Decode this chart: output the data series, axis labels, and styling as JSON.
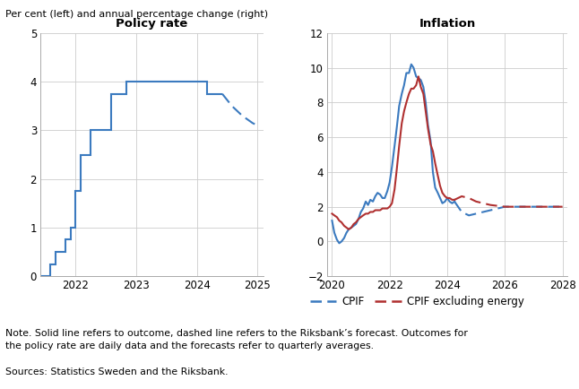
{
  "title_left": "Policy rate",
  "title_right": "Inflation",
  "suptitle": "Per cent (left) and annual percentage change (right)",
  "note": "Note. Solid line refers to outcome, dashed line refers to the Riksbank’s forecast. Outcomes for\nthe policy rate are daily data and the forecasts refer to quarterly averages.",
  "sources": "Sources: Statistics Sweden and the Riksbank.",
  "policy_solid_x": [
    2021.42,
    2021.42,
    2021.58,
    2021.58,
    2021.67,
    2021.67,
    2021.83,
    2021.83,
    2021.92,
    2021.92,
    2022.0,
    2022.0,
    2022.08,
    2022.08,
    2022.17,
    2022.17,
    2022.25,
    2022.25,
    2022.42,
    2022.42,
    2022.58,
    2022.58,
    2022.67,
    2022.67,
    2022.75,
    2022.75,
    2022.83,
    2022.83,
    2022.92,
    2022.92,
    2023.0,
    2023.0,
    2023.08,
    2023.08,
    2023.17,
    2023.17,
    2023.5,
    2023.5,
    2023.83,
    2023.83,
    2024.0,
    2024.0,
    2024.17,
    2024.17,
    2024.33,
    2024.33,
    2024.42
  ],
  "policy_solid_y": [
    0.0,
    0.0,
    0.0,
    0.25,
    0.25,
    0.5,
    0.5,
    0.75,
    0.75,
    1.0,
    1.0,
    1.75,
    1.75,
    2.5,
    2.5,
    2.5,
    2.5,
    3.0,
    3.0,
    3.0,
    3.0,
    3.75,
    3.75,
    3.75,
    3.75,
    3.75,
    3.75,
    4.0,
    4.0,
    4.0,
    4.0,
    4.0,
    4.0,
    4.0,
    4.0,
    4.0,
    4.0,
    4.0,
    4.0,
    4.0,
    4.0,
    4.0,
    4.0,
    3.75,
    3.75,
    3.75,
    3.75
  ],
  "policy_dashed_x": [
    2024.42,
    2024.58,
    2024.75,
    2024.92,
    2025.0
  ],
  "policy_dashed_y": [
    3.75,
    3.5,
    3.3,
    3.15,
    3.1
  ],
  "cpif_solid_x": [
    2020.0,
    2020.08,
    2020.17,
    2020.25,
    2020.33,
    2020.42,
    2020.5,
    2020.58,
    2020.67,
    2020.75,
    2020.83,
    2020.92,
    2021.0,
    2021.08,
    2021.17,
    2021.25,
    2021.33,
    2021.42,
    2021.5,
    2021.58,
    2021.67,
    2021.75,
    2021.83,
    2021.92,
    2022.0,
    2022.08,
    2022.17,
    2022.25,
    2022.33,
    2022.42,
    2022.5,
    2022.58,
    2022.67,
    2022.75,
    2022.83,
    2022.92,
    2023.0,
    2023.08,
    2023.17,
    2023.25,
    2023.33,
    2023.42,
    2023.5,
    2023.58,
    2023.67,
    2023.75,
    2023.83,
    2023.92,
    2024.0,
    2024.08,
    2024.17,
    2024.25
  ],
  "cpif_solid_y": [
    1.2,
    0.5,
    0.1,
    -0.1,
    0.0,
    0.2,
    0.5,
    0.7,
    0.8,
    0.9,
    1.0,
    1.3,
    1.7,
    1.9,
    2.3,
    2.1,
    2.4,
    2.3,
    2.6,
    2.8,
    2.7,
    2.5,
    2.5,
    2.9,
    3.4,
    4.3,
    5.5,
    6.6,
    7.8,
    8.5,
    9.0,
    9.7,
    9.7,
    10.2,
    10.0,
    9.5,
    9.4,
    9.3,
    8.9,
    8.0,
    6.7,
    5.8,
    4.0,
    3.1,
    2.8,
    2.5,
    2.2,
    2.3,
    2.5,
    2.3,
    2.2,
    2.3
  ],
  "cpif_dashed_x": [
    2024.25,
    2024.5,
    2024.75,
    2025.0,
    2025.5,
    2026.0,
    2026.5,
    2027.0,
    2027.5,
    2028.0
  ],
  "cpif_dashed_y": [
    2.3,
    1.7,
    1.5,
    1.6,
    1.8,
    2.0,
    2.0,
    2.0,
    2.0,
    2.0
  ],
  "cpif_ex_solid_x": [
    2020.0,
    2020.08,
    2020.17,
    2020.25,
    2020.33,
    2020.42,
    2020.5,
    2020.58,
    2020.67,
    2020.75,
    2020.83,
    2020.92,
    2021.0,
    2021.08,
    2021.17,
    2021.25,
    2021.33,
    2021.42,
    2021.5,
    2021.58,
    2021.67,
    2021.75,
    2021.83,
    2021.92,
    2022.0,
    2022.08,
    2022.17,
    2022.25,
    2022.33,
    2022.42,
    2022.5,
    2022.58,
    2022.67,
    2022.75,
    2022.83,
    2022.92,
    2023.0,
    2023.08,
    2023.17,
    2023.25,
    2023.33,
    2023.42,
    2023.5,
    2023.58,
    2023.67,
    2023.75,
    2023.83,
    2023.92,
    2024.0,
    2024.08,
    2024.17,
    2024.25
  ],
  "cpif_ex_solid_y": [
    1.6,
    1.5,
    1.4,
    1.2,
    1.1,
    0.9,
    0.8,
    0.7,
    0.8,
    1.0,
    1.1,
    1.3,
    1.4,
    1.5,
    1.6,
    1.6,
    1.7,
    1.7,
    1.8,
    1.8,
    1.8,
    1.9,
    1.9,
    1.9,
    2.0,
    2.2,
    3.0,
    4.2,
    5.5,
    6.8,
    7.5,
    8.0,
    8.5,
    8.8,
    8.8,
    9.0,
    9.5,
    8.9,
    8.5,
    7.5,
    6.5,
    5.6,
    5.2,
    4.5,
    3.8,
    3.2,
    2.8,
    2.6,
    2.5,
    2.5,
    2.4,
    2.4
  ],
  "cpif_ex_dashed_x": [
    2024.25,
    2024.5,
    2024.75,
    2025.0,
    2025.5,
    2026.0,
    2026.5,
    2027.0,
    2027.5,
    2028.0
  ],
  "cpif_ex_dashed_y": [
    2.4,
    2.6,
    2.5,
    2.3,
    2.1,
    2.0,
    2.0,
    2.0,
    2.0,
    2.0
  ],
  "color_blue": "#3b7abf",
  "color_red": "#b03030",
  "policy_xlim": [
    2021.42,
    2025.1
  ],
  "policy_ylim": [
    0,
    5
  ],
  "policy_yticks": [
    0,
    1,
    2,
    3,
    4,
    5
  ],
  "policy_xticks": [
    2022,
    2023,
    2024,
    2025
  ],
  "inflation_xlim": [
    2019.83,
    2028.17
  ],
  "inflation_ylim": [
    -2,
    12
  ],
  "inflation_yticks": [
    -2,
    0,
    2,
    4,
    6,
    8,
    10,
    12
  ],
  "inflation_xticks": [
    2020,
    2022,
    2024,
    2026,
    2028
  ],
  "grid_color": "#cccccc",
  "background_color": "#ffffff"
}
